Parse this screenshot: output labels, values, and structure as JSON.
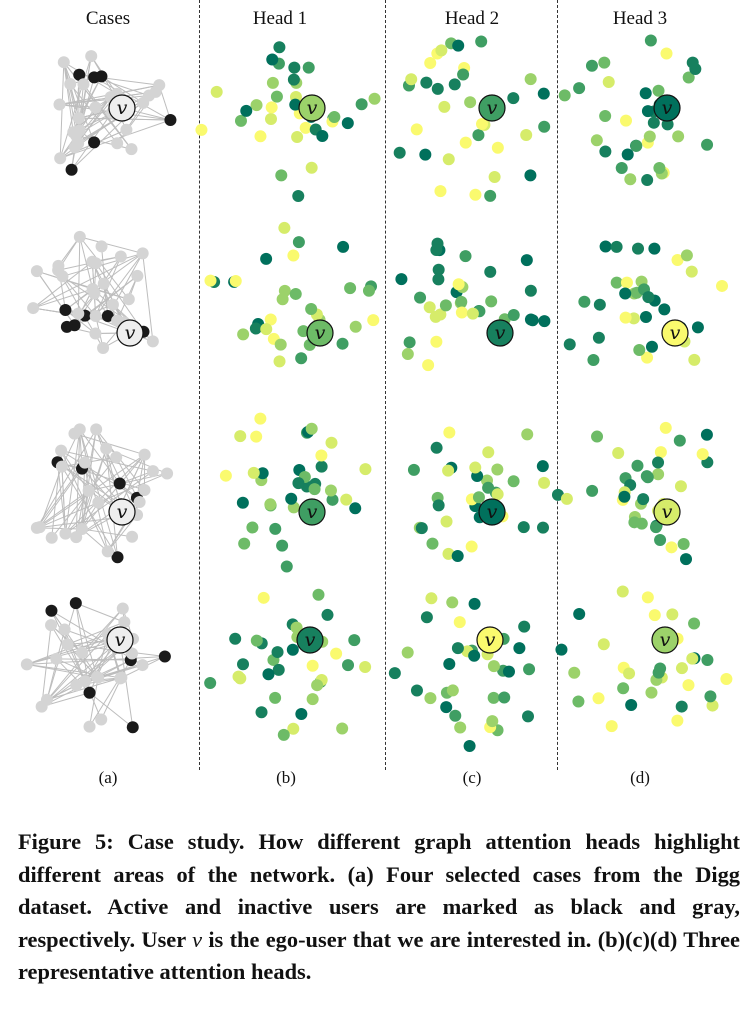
{
  "columns": [
    {
      "header": "Cases",
      "sublabel": "(a)"
    },
    {
      "header": "Head 1",
      "sublabel": "(b)"
    },
    {
      "header": "Head 2",
      "sublabel": "(c)"
    },
    {
      "header": "Head 3",
      "sublabel": "(d)"
    }
  ],
  "ego_label": "v",
  "colors": {
    "active": "#1a1a1a",
    "inactive": "#d4d4d4",
    "edge": "#bdbdbd",
    "attention_scale": [
      "#fafa6e",
      "#d6ec6a",
      "#9cd26a",
      "#6dbb67",
      "#3f9e63",
      "#17805e",
      "#00705c"
    ]
  },
  "caption": {
    "part1": "Figure 5: Case study. How different graph attention heads highlight different areas of the network. (a) Four selected cases from the Digg dataset. Active and inactive users are marked as black and gray, respectively. User ",
    "var": "v",
    "part2": " is the ego-user that we are interested in. (b)(c)(d) Three representative attention heads."
  }
}
